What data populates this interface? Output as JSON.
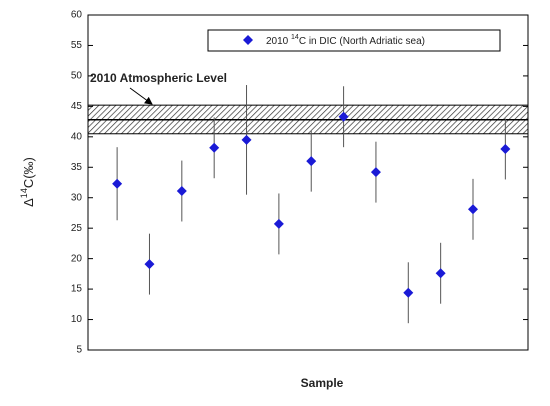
{
  "chart_data": {
    "type": "scatter",
    "xlabel": "Sample",
    "ylabel": {
      "prefix": "Δ",
      "sup": "14",
      "suffix": "C(‰)"
    },
    "x": [
      1,
      2,
      3,
      4,
      5,
      6,
      7,
      8,
      9,
      10,
      11,
      12,
      13
    ],
    "series": [
      {
        "name_pre": "2010 ",
        "name_sup": "14",
        "name_post": "C in DIC (North Adriatic sea)",
        "color": "#1a1ad6",
        "values": [
          32.3,
          19.1,
          31.1,
          38.2,
          39.5,
          25.7,
          36.0,
          43.3,
          34.2,
          14.4,
          17.6,
          28.1,
          38.0
        ],
        "errors": [
          6,
          5,
          5,
          5,
          9,
          5,
          5,
          5,
          5,
          5,
          5,
          5,
          5
        ]
      }
    ],
    "band": {
      "low": 40.5,
      "high": 45.2,
      "level": 42.8,
      "label": "2010 Atmospheric Level"
    },
    "xlim": [
      0.1,
      13.7
    ],
    "ylim": [
      5,
      60
    ],
    "yticks": [
      5,
      10,
      15,
      20,
      25,
      30,
      35,
      40,
      45,
      50,
      55,
      60
    ]
  }
}
